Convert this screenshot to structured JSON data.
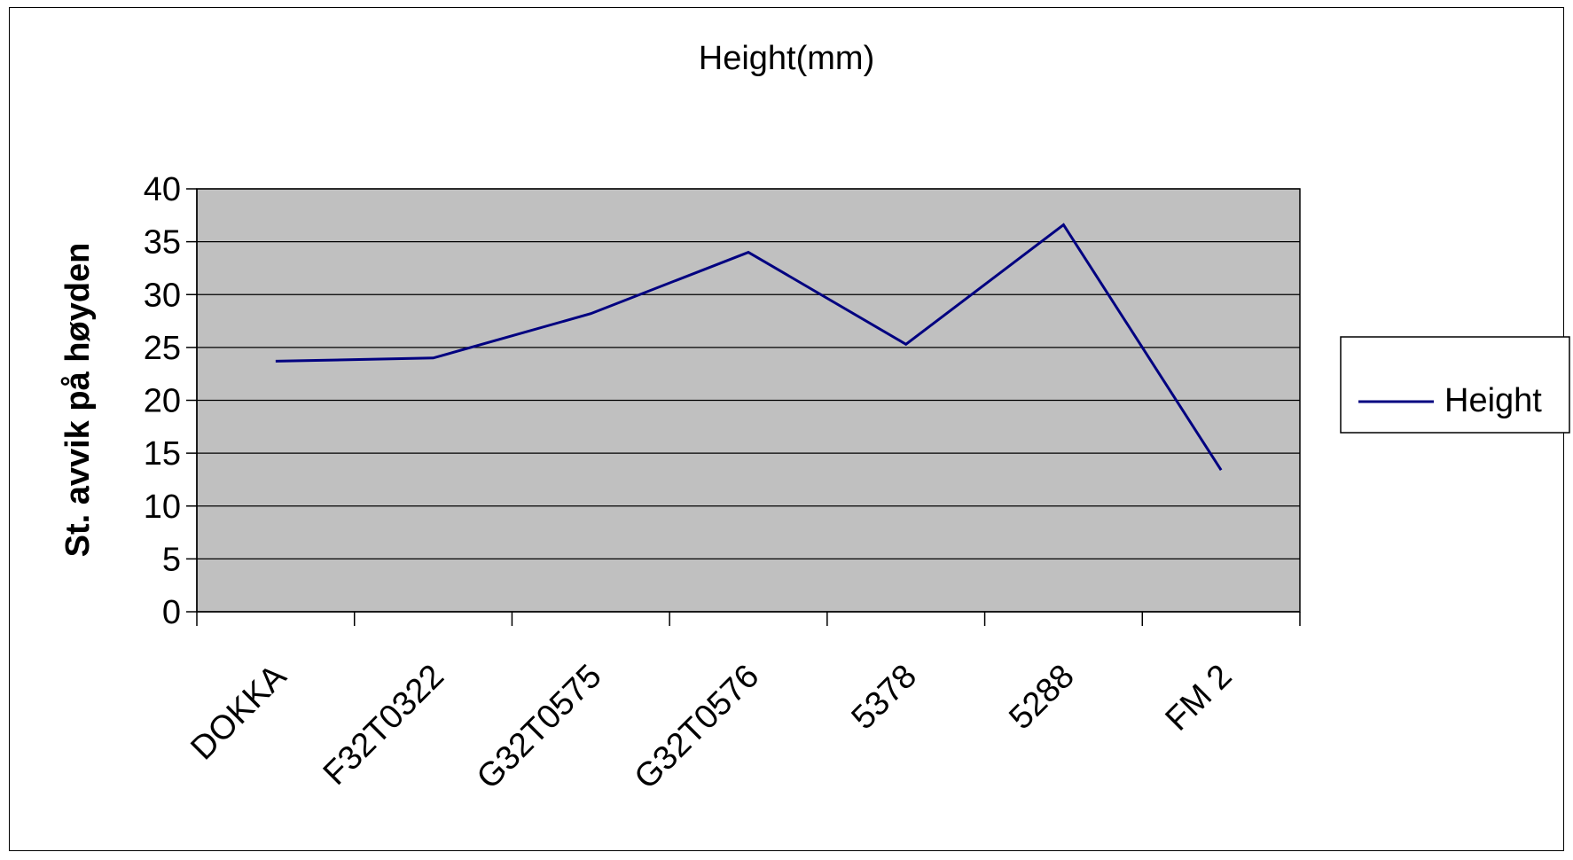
{
  "chart_data": {
    "type": "line",
    "title": "Height(mm)",
    "xlabel": "",
    "ylabel": "St. avvik på høyden",
    "ylim": [
      0,
      40
    ],
    "yticks": [
      0,
      5,
      10,
      15,
      20,
      25,
      30,
      35,
      40
    ],
    "categories": [
      "DOKKA",
      "F32T0322",
      "G32T0575",
      "G32T0576",
      "5378",
      "5288",
      "FM 2"
    ],
    "series": [
      {
        "name": "Height",
        "values": [
          23.7,
          24.0,
          28.2,
          34.0,
          25.3,
          36.6,
          13.4
        ]
      }
    ],
    "grid": true,
    "legend_position": "right",
    "colors": {
      "line": "#000080",
      "plot_bg": "#c0c0c0",
      "gridline": "#000000"
    }
  }
}
